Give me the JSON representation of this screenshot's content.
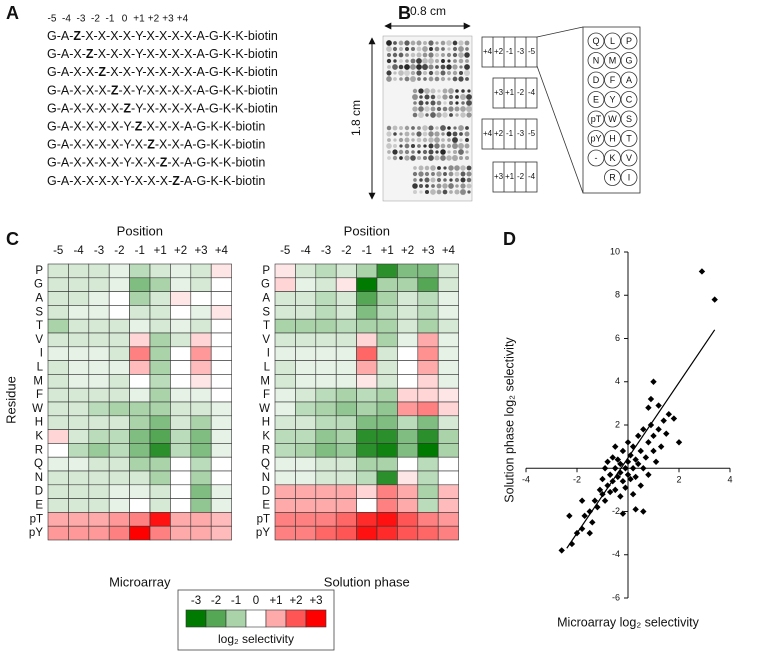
{
  "panel_a": {
    "label": "A",
    "positions": [
      "-5",
      "-4",
      "-3",
      "-2",
      "-1",
      "0",
      "+1",
      "+2",
      "+3",
      "+4"
    ],
    "sequences": [
      {
        "before": "G-A-",
        "z": "Z",
        "after": "-X-X-X-X-Y-X-X-X-X-A-G-K-K-biotin"
      },
      {
        "before": "G-A-X-",
        "z": "Z",
        "after": "-X-X-X-Y-X-X-X-X-A-G-K-K-biotin"
      },
      {
        "before": "G-A-X-X-",
        "z": "Z",
        "after": "-X-X-Y-X-X-X-X-A-G-K-K-biotin"
      },
      {
        "before": "G-A-X-X-X-",
        "z": "Z",
        "after": "-X-Y-X-X-X-X-A-G-K-K-biotin"
      },
      {
        "before": "G-A-X-X-X-X-",
        "z": "Z",
        "after": "-Y-X-X-X-X-A-G-K-K-biotin"
      },
      {
        "before": "G-A-X-X-X-X-Y-",
        "z": "Z",
        "after": "-X-X-X-A-G-K-K-biotin"
      },
      {
        "before": "G-A-X-X-X-X-Y-X-",
        "z": "Z",
        "after": "-X-X-A-G-K-K-biotin"
      },
      {
        "before": "G-A-X-X-X-X-Y-X-X-",
        "z": "Z",
        "after": "-X-A-G-K-K-biotin"
      },
      {
        "before": "G-A-X-X-X-X-Y-X-X-X-",
        "z": "Z",
        "after": "-A-G-K-K-biotin"
      }
    ]
  },
  "panel_b": {
    "label": "B",
    "width_label": "0.8 cm",
    "height_label": "1.8 cm",
    "blocks": [
      [
        "+4",
        "+2",
        "-1",
        "-3",
        "-5"
      ],
      [
        "+3",
        "+1",
        "-2",
        "-4"
      ],
      [
        "+4",
        "+2",
        "-1",
        "-3",
        "-5"
      ],
      [
        "+3",
        "+1",
        "-2",
        "-4"
      ]
    ],
    "spots": [
      [
        "Q",
        "L",
        "P"
      ],
      [
        "N",
        "M",
        "G"
      ],
      [
        "D",
        "F",
        "A"
      ],
      [
        "E",
        "Y",
        "C"
      ],
      [
        "pT",
        "W",
        "S"
      ],
      [
        "pY",
        "H",
        "T"
      ],
      [
        "-",
        "K",
        "V"
      ],
      [
        "R",
        "I"
      ]
    ]
  },
  "panel_c": {
    "label": "C",
    "x_title": "Position",
    "y_title": "Residue",
    "columns": [
      "-5",
      "-4",
      "-3",
      "-2",
      "-1",
      "+1",
      "+2",
      "+3",
      "+4"
    ],
    "rows": [
      "P",
      "G",
      "A",
      "S",
      "T",
      "V",
      "I",
      "L",
      "M",
      "F",
      "W",
      "H",
      "K",
      "R",
      "Q",
      "N",
      "D",
      "E",
      "pT",
      "pY"
    ],
    "heatmaps": [
      {
        "title": "Microarray",
        "values": [
          [
            -0.5,
            -0.5,
            -0.5,
            -0.3,
            -0.8,
            -0.5,
            -0.3,
            -0.5,
            0.3
          ],
          [
            -0.5,
            -0.5,
            -0.5,
            -0.3,
            -1.5,
            -1,
            -0.3,
            -0.5,
            0
          ],
          [
            -0.5,
            -0.5,
            -0.3,
            0,
            -1,
            -0.5,
            0.3,
            0,
            0
          ],
          [
            -0.5,
            -0.3,
            -0.3,
            0,
            -0.5,
            -0.5,
            0,
            -0.3,
            0.3
          ],
          [
            -1,
            -0.5,
            -0.5,
            -0.5,
            -0.3,
            -0.5,
            -0.3,
            -0.5,
            0
          ],
          [
            -0.5,
            -0.5,
            -0.5,
            -0.5,
            0.5,
            -1,
            -0.5,
            0.5,
            0
          ],
          [
            -0.3,
            -0.3,
            -0.3,
            -0.5,
            1.5,
            -1,
            0,
            1.2,
            0
          ],
          [
            -0.5,
            -0.3,
            -0.3,
            -0.3,
            0.8,
            -1,
            0,
            0.8,
            0
          ],
          [
            -0.5,
            -0.3,
            -0.3,
            -0.5,
            0,
            -0.8,
            0,
            0.3,
            0
          ],
          [
            -0.5,
            -0.5,
            -0.5,
            -0.5,
            -0.3,
            -1,
            -0.3,
            -0.3,
            0
          ],
          [
            -0.5,
            -0.5,
            -0.8,
            -1,
            -1,
            -1,
            -0.5,
            -0.5,
            -0.3
          ],
          [
            -0.5,
            -0.5,
            -0.5,
            -0.5,
            -1,
            -1.5,
            -0.5,
            -1,
            -0.3
          ],
          [
            0.5,
            -0.5,
            -0.8,
            -0.8,
            -1.5,
            -2,
            -0.8,
            -1.5,
            -0.3
          ],
          [
            0,
            -0.8,
            -1.2,
            -0.8,
            -1.5,
            -2.5,
            -0.8,
            -1.5,
            -0.3
          ],
          [
            -0.3,
            -0.3,
            -0.5,
            -0.5,
            -1,
            -1,
            0,
            -0.8,
            0
          ],
          [
            -0.5,
            -0.5,
            -0.5,
            -0.5,
            -0.5,
            -1,
            0,
            -1,
            0
          ],
          [
            -0.5,
            -0.5,
            -0.5,
            -0.3,
            -0.3,
            -0.5,
            0,
            -1.5,
            -0.3
          ],
          [
            -0.5,
            -0.5,
            -0.5,
            -0.3,
            0,
            -0.5,
            0,
            -1.3,
            -0.3
          ],
          [
            1,
            1,
            1,
            1.2,
            1.5,
            2.8,
            1,
            1,
            0.8
          ],
          [
            1.2,
            1.2,
            1.2,
            1.5,
            3,
            1.5,
            1,
            1,
            0.8
          ]
        ]
      },
      {
        "title": "Solution phase",
        "values": [
          [
            0.3,
            -0.5,
            -0.8,
            -0.5,
            -1,
            -2.5,
            -1.5,
            -1.5,
            -0.5
          ],
          [
            0.5,
            -0.3,
            -0.5,
            0.3,
            -3,
            -1,
            -1,
            -2,
            -0.5
          ],
          [
            -0.5,
            -0.5,
            -0.8,
            -0.5,
            -2,
            -1,
            -0.5,
            -0.8,
            -0.3
          ],
          [
            -0.5,
            -0.5,
            -0.8,
            -0.5,
            -1.5,
            -0.8,
            -0.5,
            -0.8,
            -0.3
          ],
          [
            -1,
            -1,
            -1,
            -0.8,
            -1,
            -1,
            -0.5,
            -1,
            -0.5
          ],
          [
            -0.5,
            -0.5,
            -0.5,
            -0.5,
            0.5,
            -1,
            -0.3,
            1,
            -0.3
          ],
          [
            -0.3,
            -0.3,
            -0.3,
            -0.3,
            1.8,
            -0.5,
            0,
            1.3,
            -0.3
          ],
          [
            -0.5,
            -0.3,
            -0.3,
            -0.3,
            1,
            -0.5,
            0,
            1,
            -0.3
          ],
          [
            -0.5,
            -0.3,
            -0.3,
            -0.3,
            0.3,
            -0.5,
            0,
            0.5,
            -0.3
          ],
          [
            -0.3,
            -0.5,
            -0.8,
            -1,
            -0.8,
            -1,
            0.5,
            0.5,
            0.3
          ],
          [
            -0.3,
            -0.8,
            -1,
            -1.3,
            -1,
            -1.3,
            1.2,
            1.5,
            0.5
          ],
          [
            -0.5,
            -0.5,
            -0.8,
            -0.8,
            -1.5,
            -1.5,
            -0.8,
            -1.5,
            -0.5
          ],
          [
            -0.8,
            -0.8,
            -1.3,
            -1,
            -2.5,
            -2.5,
            -1.5,
            -2.5,
            -1
          ],
          [
            -0.8,
            -1,
            -1.5,
            -1.2,
            -2.5,
            -2.8,
            -1.5,
            -3,
            -1
          ],
          [
            -0.3,
            -0.3,
            -0.5,
            -0.5,
            -1,
            -1,
            0,
            -0.8,
            0
          ],
          [
            -0.3,
            -0.3,
            -0.5,
            -0.5,
            -0.8,
            -2.5,
            0.3,
            -0.8,
            0
          ],
          [
            1,
            1,
            1,
            1,
            0.5,
            1.5,
            1,
            -1,
            0.8
          ],
          [
            1,
            1,
            1,
            1,
            0,
            1.5,
            1,
            -0.8,
            0.8
          ],
          [
            1.5,
            1.5,
            1.5,
            1.8,
            2.5,
            2.8,
            2,
            1.5,
            1.2
          ],
          [
            1.5,
            1.5,
            1.8,
            2,
            2.8,
            2.5,
            2,
            1.8,
            1.5
          ]
        ]
      }
    ],
    "colorbar": {
      "title": "log₂ selectivity",
      "ticks": [
        -3,
        -2,
        -1,
        0,
        {
          "value": 1,
          "label": "+1"
        },
        {
          "value": 2,
          "label": "+2"
        },
        {
          "value": 3,
          "label": "+3"
        }
      ],
      "colors": {
        "negative": "#007a00",
        "zero": "#ffffff",
        "positive": "#ff0000"
      }
    }
  },
  "chart_data": {
    "type": "scatter",
    "panel_label": "D",
    "x_label": "Microarray log₂ selectivity",
    "y_label": "Solution phase log₂ selectivity",
    "color": "#000000",
    "xlim": [
      -4,
      4
    ],
    "ylim": [
      -6,
      10
    ],
    "xticks": [
      -4,
      -2,
      2,
      4
    ],
    "yticks": [
      -6,
      -4,
      -2,
      2,
      4,
      6,
      8,
      10
    ],
    "fit_line": {
      "x": [
        -2.4,
        3.4
      ],
      "y": [
        -3.7,
        6.4
      ]
    },
    "x": [
      -2.6,
      -2.2,
      -2,
      -1.8,
      -1.7,
      -1.5,
      -1.4,
      -1.3,
      -1.2,
      -1.1,
      -1,
      -1,
      -0.9,
      -0.9,
      -0.8,
      -0.8,
      -0.7,
      -0.7,
      -0.6,
      -0.6,
      -0.5,
      -0.5,
      -0.5,
      -0.4,
      -0.4,
      -0.3,
      -0.3,
      -0.3,
      -0.2,
      -0.2,
      -0.1,
      -0.1,
      0,
      0,
      0,
      0.1,
      0.1,
      0.2,
      0.2,
      0.2,
      0.3,
      0.3,
      0.4,
      0.4,
      0.5,
      0.5,
      0.6,
      0.6,
      0.7,
      0.8,
      0.8,
      0.9,
      1,
      1,
      1.1,
      1.2,
      1.3,
      1.4,
      1.5,
      1.6,
      1.8,
      1,
      0.9,
      0.8,
      2,
      2.9,
      3.4,
      -1.8,
      -2.3,
      -1.5,
      0.6,
      -0.2,
      1.2,
      0.3
    ],
    "y": [
      -3.8,
      -3.5,
      -3,
      -2.8,
      -2.2,
      -2,
      -2.5,
      -1.5,
      -1.8,
      -1,
      -1.2,
      -0.5,
      -1.5,
      0,
      -0.8,
      0.3,
      -0.3,
      -1.1,
      0.5,
      -0.6,
      0,
      -1,
      1,
      -0.4,
      0.4,
      -1.3,
      0.2,
      -0.2,
      0.8,
      -0.6,
      0,
      -0.9,
      0.3,
      -0.3,
      1.2,
      -0.5,
      0.6,
      0,
      -1.2,
      1,
      0.4,
      -0.4,
      1.5,
      0.2,
      -0.8,
      0.8,
      1.8,
      0,
      0.5,
      1.2,
      -0.3,
      2,
      0.8,
      1.5,
      0.3,
      1.8,
      1,
      2.2,
      1.6,
      2.5,
      2.3,
      4,
      3.2,
      2.8,
      1.2,
      9.1,
      7.8,
      -1.5,
      -2.2,
      -3,
      -2,
      -2.1,
      2.9,
      -1.9
    ]
  }
}
